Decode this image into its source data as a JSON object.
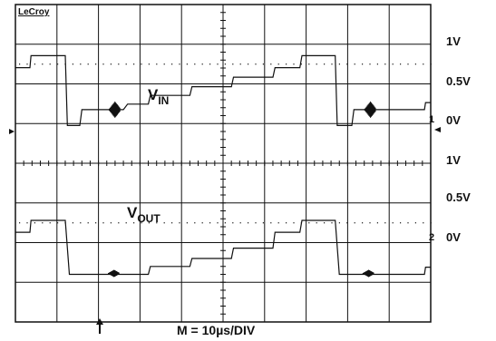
{
  "brand": "LeCroy",
  "timebase": "M = 10µs/DIV",
  "scale_labels": [
    "1V",
    "0.5V",
    "0V",
    "1V",
    "0.5V",
    "0V"
  ],
  "channel_markers": [
    "1",
    "2"
  ],
  "colors": {
    "background": "#ffffff",
    "grid": "#111111",
    "trace": "#111111"
  },
  "chart_data": {
    "type": "line",
    "grid": true,
    "divisions": {
      "x": 10,
      "y": 8
    },
    "x_unit": "µs",
    "series": [
      {
        "label": {
          "main": "V",
          "sub": "IN"
        },
        "channel": "1",
        "points": [
          [
            0,
            0.53
          ],
          [
            7,
            0.53
          ],
          [
            7.5,
            0.68
          ],
          [
            24,
            0.68
          ],
          [
            25,
            -0.2
          ],
          [
            31,
            -0.2
          ],
          [
            32,
            0.0
          ],
          [
            52,
            0.0
          ],
          [
            54,
            0.07
          ],
          [
            64,
            0.07
          ],
          [
            65,
            0.18
          ],
          [
            84,
            0.18
          ],
          [
            85,
            0.29
          ],
          [
            104,
            0.29
          ],
          [
            105,
            0.41
          ],
          [
            124,
            0.41
          ],
          [
            125,
            0.53
          ],
          [
            137,
            0.53
          ],
          [
            138,
            0.68
          ],
          [
            154,
            0.68
          ],
          [
            155,
            -0.2
          ],
          [
            162,
            -0.2
          ],
          [
            163,
            0.0
          ],
          [
            197,
            0.0
          ],
          [
            197.5,
            0.09
          ],
          [
            199,
            0.09
          ],
          [
            200,
            0.09
          ]
        ]
      },
      {
        "label": {
          "main": "V",
          "sub": "OUT"
        },
        "channel": "2",
        "points": [
          [
            0,
            0.53
          ],
          [
            7,
            0.53
          ],
          [
            7.5,
            0.68
          ],
          [
            24,
            0.68
          ],
          [
            26,
            0.0
          ],
          [
            64,
            0.0
          ],
          [
            65,
            0.1
          ],
          [
            84,
            0.1
          ],
          [
            85,
            0.2
          ],
          [
            104,
            0.2
          ],
          [
            105,
            0.33
          ],
          [
            124,
            0.33
          ],
          [
            125,
            0.53
          ],
          [
            137,
            0.53
          ],
          [
            138,
            0.68
          ],
          [
            154,
            0.68
          ],
          [
            156,
            0.0
          ],
          [
            197,
            0.0
          ],
          [
            197.5,
            0.09
          ],
          [
            199,
            0.09
          ],
          [
            200,
            0.09
          ]
        ]
      }
    ]
  }
}
